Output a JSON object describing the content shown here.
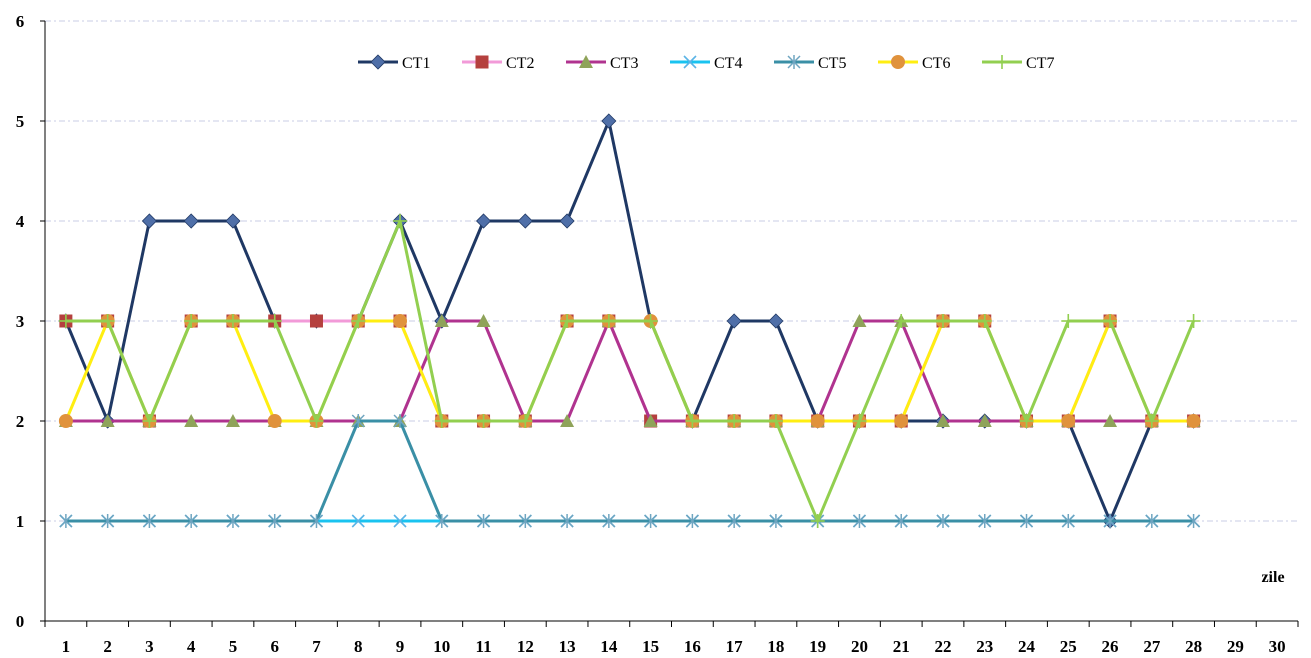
{
  "chart_data": {
    "type": "line",
    "xlabel": "zile",
    "ylabel": "",
    "title": "",
    "categories": [
      "1",
      "2",
      "3",
      "4",
      "5",
      "6",
      "7",
      "8",
      "9",
      "10",
      "11",
      "12",
      "13",
      "14",
      "15",
      "16",
      "17",
      "18",
      "19",
      "20",
      "21",
      "22",
      "23",
      "24",
      "25",
      "26",
      "27",
      "28",
      "29",
      "30"
    ],
    "ylim": [
      0,
      6
    ],
    "yticks": [
      "0",
      "1",
      "2",
      "3",
      "4",
      "5",
      "6"
    ],
    "grid": true,
    "legend_position": "top-center",
    "series": [
      {
        "name": "CT1",
        "color": "#1f3864",
        "marker": "diamond",
        "marker_color": "#4f6fa8",
        "values": [
          3,
          2,
          4,
          4,
          4,
          3,
          3,
          3,
          4,
          3,
          4,
          4,
          4,
          5,
          3,
          2,
          3,
          3,
          2,
          2,
          2,
          2,
          2,
          2,
          2,
          1,
          2,
          2,
          null,
          null
        ]
      },
      {
        "name": "CT2",
        "color": "#f29ad8",
        "marker": "square",
        "marker_color": "#b5403e",
        "values": [
          3,
          3,
          2,
          3,
          3,
          3,
          3,
          3,
          3,
          2,
          2,
          2,
          3,
          3,
          2,
          2,
          2,
          2,
          2,
          2,
          2,
          3,
          3,
          2,
          2,
          3,
          2,
          2,
          null,
          null
        ]
      },
      {
        "name": "CT3",
        "color": "#b0338f",
        "marker": "triangle",
        "marker_color": "#8fa35a",
        "values": [
          2,
          2,
          2,
          2,
          2,
          2,
          2,
          2,
          2,
          3,
          3,
          2,
          2,
          3,
          2,
          2,
          2,
          2,
          2,
          3,
          3,
          2,
          2,
          2,
          2,
          2,
          2,
          2,
          null,
          null
        ]
      },
      {
        "name": "CT4",
        "color": "#19c3f0",
        "marker": "x",
        "marker_color": "#5ab4e6",
        "values": [
          1,
          1,
          1,
          1,
          1,
          1,
          1,
          1,
          1,
          1,
          1,
          1,
          1,
          1,
          1,
          1,
          1,
          1,
          1,
          1,
          1,
          1,
          1,
          1,
          1,
          1,
          1,
          1,
          null,
          null
        ]
      },
      {
        "name": "CT5",
        "color": "#3a8fa6",
        "marker": "asterisk",
        "marker_color": "#6fa5c0",
        "values": [
          1,
          1,
          1,
          1,
          1,
          1,
          1,
          2,
          2,
          1,
          1,
          1,
          1,
          1,
          1,
          1,
          1,
          1,
          1,
          1,
          1,
          1,
          1,
          1,
          1,
          1,
          1,
          1,
          null,
          null
        ]
      },
      {
        "name": "CT6",
        "color": "#ffee11",
        "marker": "circle",
        "marker_color": "#e0923c",
        "values": [
          2,
          3,
          2,
          3,
          3,
          2,
          2,
          3,
          3,
          2,
          2,
          2,
          3,
          3,
          3,
          2,
          2,
          2,
          2,
          2,
          2,
          3,
          3,
          2,
          2,
          3,
          2,
          2,
          null,
          null
        ]
      },
      {
        "name": "CT7",
        "color": "#92cf50",
        "marker": "plus",
        "marker_color": "#92cf50",
        "values": [
          3,
          3,
          2,
          3,
          3,
          3,
          2,
          3,
          4,
          2,
          2,
          2,
          3,
          3,
          3,
          2,
          2,
          2,
          1,
          2,
          3,
          3,
          3,
          2,
          3,
          3,
          2,
          3,
          null,
          null
        ]
      }
    ]
  }
}
